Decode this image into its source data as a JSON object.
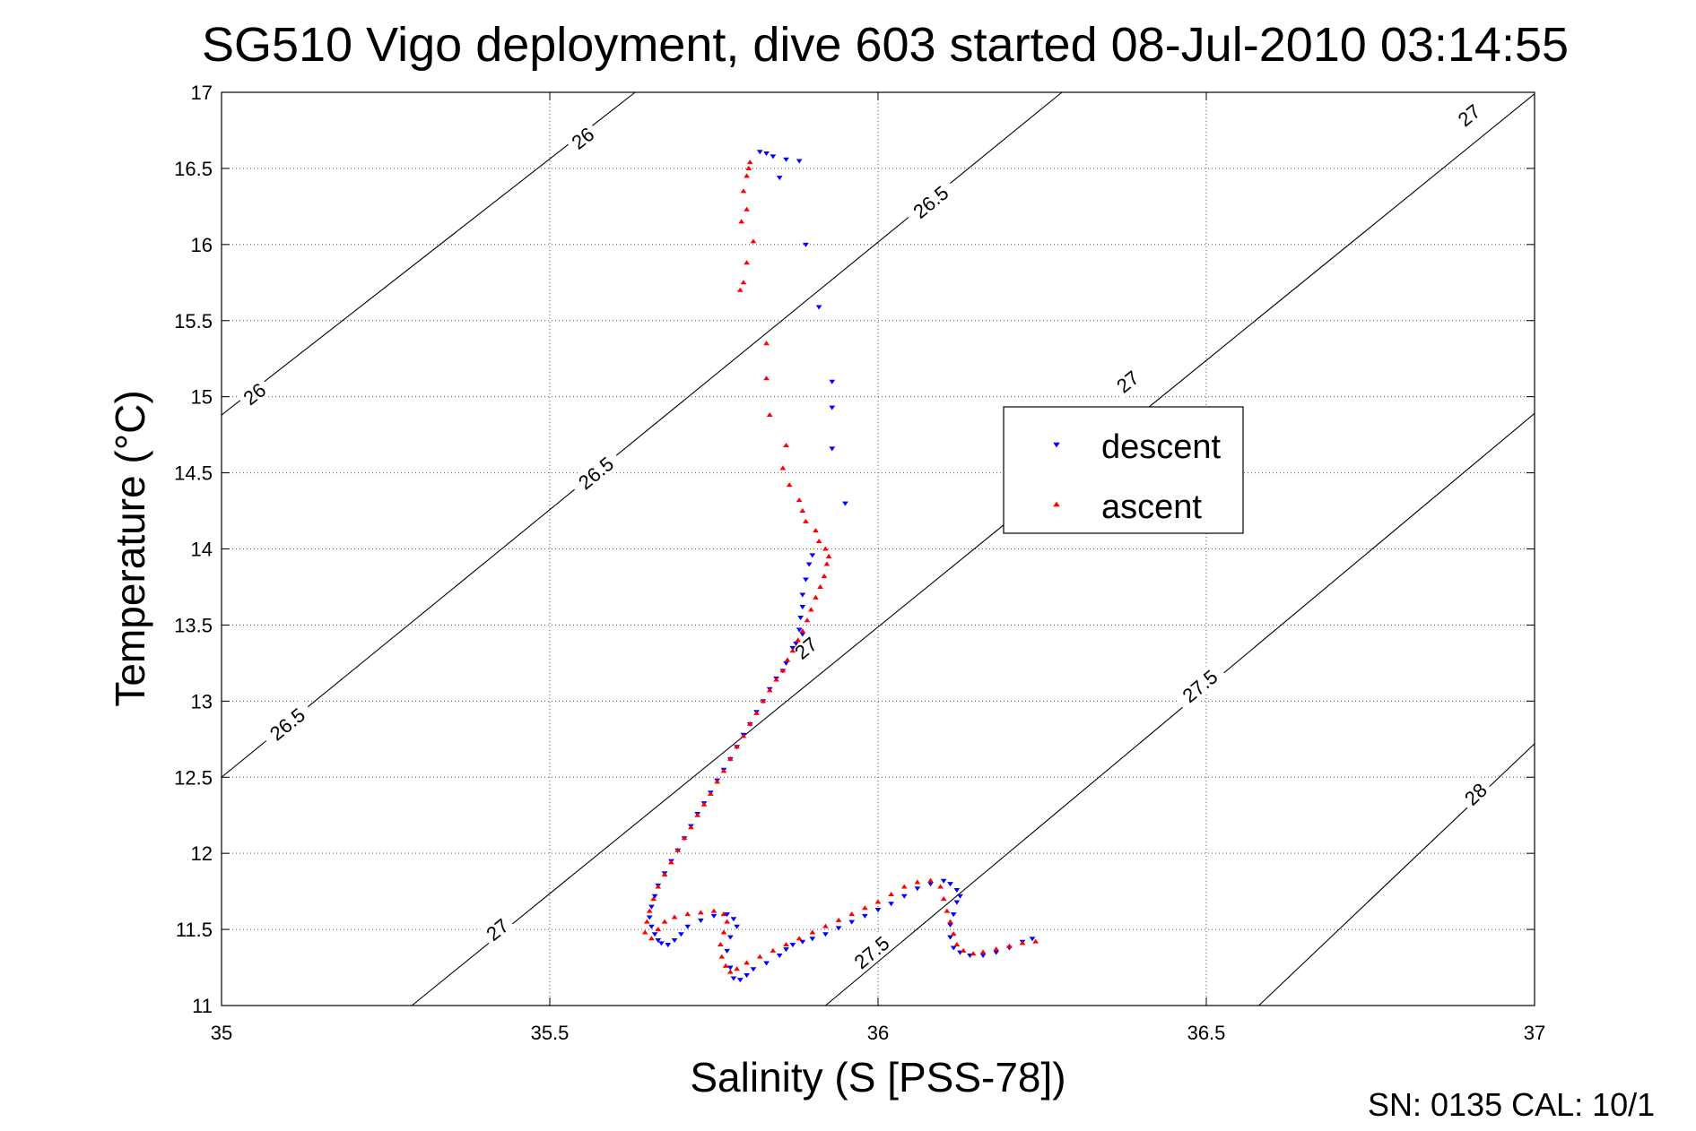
{
  "chart_data": {
    "type": "scatter",
    "title": "SG510 Vigo deployment, dive 603 started 08-Jul-2010 03:14:55",
    "xlabel": "Salinity (S [PSS-78])",
    "ylabel": "Temperature (°C)",
    "xlim": [
      35,
      37
    ],
    "ylim": [
      11,
      17
    ],
    "x_ticks": [
      "35",
      "35.5",
      "36",
      "36.5",
      "37"
    ],
    "y_ticks": [
      "11",
      "11.5",
      "12",
      "12.5",
      "13",
      "13.5",
      "14",
      "14.5",
      "15",
      "15.5",
      "16",
      "16.5",
      "17"
    ],
    "grid": true,
    "legend_position": "center-right",
    "footer": "SN: 0135  CAL: 10/1",
    "isopycnals": [
      {
        "label": "26",
        "points": [
          [
            35.0,
            14.88
          ],
          [
            35.63,
            17.0
          ]
        ],
        "label_pos": [
          [
            35.05,
            15.02
          ],
          [
            35.55,
            16.7
          ]
        ]
      },
      {
        "label": "26.5",
        "points": [
          [
            35.0,
            12.5
          ],
          [
            36.28,
            17.0
          ]
        ],
        "label_pos": [
          [
            35.1,
            12.85
          ],
          [
            35.57,
            14.5
          ],
          [
            36.08,
            16.28
          ]
        ]
      },
      {
        "label": "27",
        "points": [
          [
            35.29,
            11.0
          ],
          [
            37.0,
            16.99
          ]
        ],
        "label_pos": [
          [
            35.42,
            11.5
          ],
          [
            35.89,
            13.35
          ],
          [
            36.38,
            15.1
          ],
          [
            36.9,
            16.85
          ]
        ]
      },
      {
        "label": "27.5",
        "points": [
          [
            35.92,
            11.0
          ],
          [
            37.0,
            14.89
          ]
        ],
        "label_pos": [
          [
            35.99,
            11.35
          ],
          [
            36.49,
            13.1
          ]
        ]
      },
      {
        "label": "28",
        "points": [
          [
            36.58,
            11.0
          ],
          [
            37.0,
            12.72
          ]
        ],
        "label_pos": [
          [
            36.91,
            12.39
          ]
        ]
      }
    ],
    "series": [
      {
        "name": "descent",
        "color": "#0000ff",
        "marker": "triangle-down",
        "points": [
          [
            35.82,
            16.61
          ],
          [
            35.83,
            16.6
          ],
          [
            35.84,
            16.58
          ],
          [
            35.86,
            16.56
          ],
          [
            35.88,
            16.55
          ],
          [
            35.85,
            16.44
          ],
          [
            35.89,
            16.0
          ],
          [
            35.91,
            15.59
          ],
          [
            35.93,
            15.1
          ],
          [
            35.93,
            14.93
          ],
          [
            35.93,
            14.66
          ],
          [
            35.95,
            14.3
          ],
          [
            35.9,
            13.96
          ],
          [
            35.895,
            13.9
          ],
          [
            35.89,
            13.8
          ],
          [
            35.885,
            13.7
          ],
          [
            35.885,
            13.62
          ],
          [
            35.882,
            13.55
          ],
          [
            35.88,
            13.47
          ],
          [
            35.885,
            13.44
          ],
          [
            35.875,
            13.38
          ],
          [
            35.87,
            13.35
          ],
          [
            35.86,
            13.25
          ],
          [
            35.855,
            13.2
          ],
          [
            35.845,
            13.15
          ],
          [
            35.835,
            13.08
          ],
          [
            35.825,
            13.0
          ],
          [
            35.815,
            12.93
          ],
          [
            35.805,
            12.85
          ],
          [
            35.795,
            12.78
          ],
          [
            35.785,
            12.7
          ],
          [
            35.775,
            12.62
          ],
          [
            35.765,
            12.55
          ],
          [
            35.755,
            12.48
          ],
          [
            35.745,
            12.4
          ],
          [
            35.735,
            12.33
          ],
          [
            35.725,
            12.26
          ],
          [
            35.715,
            12.18
          ],
          [
            35.705,
            12.1
          ],
          [
            35.695,
            12.02
          ],
          [
            35.685,
            11.95
          ],
          [
            35.675,
            11.87
          ],
          [
            35.665,
            11.79
          ],
          [
            35.66,
            11.72
          ],
          [
            35.655,
            11.65
          ],
          [
            35.652,
            11.58
          ],
          [
            35.655,
            11.52
          ],
          [
            35.66,
            11.47
          ],
          [
            35.665,
            11.43
          ],
          [
            35.67,
            11.41
          ],
          [
            35.68,
            11.4
          ],
          [
            35.69,
            11.43
          ],
          [
            35.7,
            11.47
          ],
          [
            35.71,
            11.52
          ],
          [
            35.73,
            11.56
          ],
          [
            35.75,
            11.59
          ],
          [
            35.77,
            11.6
          ],
          [
            35.78,
            11.57
          ],
          [
            35.785,
            11.52
          ],
          [
            35.775,
            11.45
          ],
          [
            35.77,
            11.36
          ],
          [
            35.775,
            11.25
          ],
          [
            35.78,
            11.18
          ],
          [
            35.79,
            11.17
          ],
          [
            35.8,
            11.2
          ],
          [
            35.81,
            11.24
          ],
          [
            35.83,
            11.28
          ],
          [
            35.85,
            11.33
          ],
          [
            35.86,
            11.37
          ],
          [
            35.87,
            11.4
          ],
          [
            35.885,
            11.42
          ],
          [
            35.9,
            11.44
          ],
          [
            35.92,
            11.47
          ],
          [
            35.94,
            11.51
          ],
          [
            35.96,
            11.55
          ],
          [
            35.98,
            11.59
          ],
          [
            36.0,
            11.63
          ],
          [
            36.02,
            11.67
          ],
          [
            36.04,
            11.72
          ],
          [
            36.06,
            11.77
          ],
          [
            36.08,
            11.8
          ],
          [
            36.1,
            11.82
          ],
          [
            36.11,
            11.8
          ],
          [
            36.12,
            11.76
          ],
          [
            36.125,
            11.72
          ],
          [
            36.12,
            11.68
          ],
          [
            36.115,
            11.6
          ],
          [
            36.11,
            11.53
          ],
          [
            36.11,
            11.45
          ],
          [
            36.115,
            11.38
          ],
          [
            36.125,
            11.35
          ],
          [
            36.14,
            11.33
          ],
          [
            36.16,
            11.33
          ],
          [
            36.18,
            11.35
          ],
          [
            36.2,
            11.38
          ],
          [
            36.22,
            11.42
          ],
          [
            36.235,
            11.44
          ]
        ]
      },
      {
        "name": "ascent",
        "color": "#ff0000",
        "marker": "triangle-up",
        "points": [
          [
            35.805,
            16.54
          ],
          [
            35.803,
            16.5
          ],
          [
            35.8,
            16.45
          ],
          [
            35.795,
            16.35
          ],
          [
            35.8,
            16.23
          ],
          [
            35.792,
            16.15
          ],
          [
            35.81,
            16.02
          ],
          [
            35.8,
            15.88
          ],
          [
            35.795,
            15.75
          ],
          [
            35.79,
            15.7
          ],
          [
            35.83,
            15.35
          ],
          [
            35.83,
            15.12
          ],
          [
            35.835,
            14.88
          ],
          [
            35.86,
            14.68
          ],
          [
            35.855,
            14.53
          ],
          [
            35.865,
            14.42
          ],
          [
            35.88,
            14.32
          ],
          [
            35.885,
            14.25
          ],
          [
            35.89,
            14.18
          ],
          [
            35.905,
            14.12
          ],
          [
            35.91,
            14.05
          ],
          [
            35.92,
            14.0
          ],
          [
            35.925,
            13.95
          ],
          [
            35.922,
            13.9
          ],
          [
            35.918,
            13.82
          ],
          [
            35.912,
            13.75
          ],
          [
            35.905,
            13.68
          ],
          [
            35.898,
            13.6
          ],
          [
            35.892,
            13.53
          ],
          [
            35.885,
            13.46
          ],
          [
            35.878,
            13.4
          ],
          [
            35.87,
            13.33
          ],
          [
            35.862,
            13.27
          ],
          [
            35.855,
            13.2
          ],
          [
            35.845,
            13.14
          ],
          [
            35.835,
            13.07
          ],
          [
            35.825,
            13.0
          ],
          [
            35.815,
            12.92
          ],
          [
            35.805,
            12.85
          ],
          [
            35.795,
            12.77
          ],
          [
            35.785,
            12.7
          ],
          [
            35.775,
            12.62
          ],
          [
            35.765,
            12.54
          ],
          [
            35.755,
            12.47
          ],
          [
            35.745,
            12.39
          ],
          [
            35.735,
            12.32
          ],
          [
            35.725,
            12.25
          ],
          [
            35.715,
            12.17
          ],
          [
            35.705,
            12.1
          ],
          [
            35.695,
            12.02
          ],
          [
            35.685,
            11.94
          ],
          [
            35.675,
            11.86
          ],
          [
            35.665,
            11.78
          ],
          [
            35.658,
            11.7
          ],
          [
            35.652,
            11.62
          ],
          [
            35.648,
            11.55
          ],
          [
            35.645,
            11.48
          ],
          [
            35.655,
            11.44
          ],
          [
            35.665,
            11.5
          ],
          [
            35.675,
            11.55
          ],
          [
            35.69,
            11.58
          ],
          [
            35.71,
            11.6
          ],
          [
            35.73,
            11.61
          ],
          [
            35.75,
            11.62
          ],
          [
            35.765,
            11.6
          ],
          [
            35.77,
            11.55
          ],
          [
            35.765,
            11.48
          ],
          [
            35.76,
            11.4
          ],
          [
            35.762,
            11.32
          ],
          [
            35.768,
            11.26
          ],
          [
            35.775,
            11.22
          ],
          [
            35.785,
            11.24
          ],
          [
            35.8,
            11.28
          ],
          [
            35.82,
            11.32
          ],
          [
            35.84,
            11.36
          ],
          [
            35.86,
            11.4
          ],
          [
            35.88,
            11.44
          ],
          [
            35.9,
            11.48
          ],
          [
            35.92,
            11.52
          ],
          [
            35.94,
            11.56
          ],
          [
            35.96,
            11.6
          ],
          [
            35.98,
            11.64
          ],
          [
            36.0,
            11.68
          ],
          [
            36.02,
            11.73
          ],
          [
            36.04,
            11.78
          ],
          [
            36.06,
            11.81
          ],
          [
            36.08,
            11.82
          ],
          [
            36.095,
            11.78
          ],
          [
            36.1,
            11.7
          ],
          [
            36.105,
            11.62
          ],
          [
            36.11,
            11.55
          ],
          [
            36.115,
            11.47
          ],
          [
            36.12,
            11.4
          ],
          [
            36.13,
            11.36
          ],
          [
            36.145,
            11.34
          ],
          [
            36.16,
            11.35
          ],
          [
            36.18,
            11.37
          ],
          [
            36.2,
            11.39
          ],
          [
            36.22,
            11.41
          ],
          [
            36.24,
            11.42
          ]
        ]
      }
    ]
  }
}
